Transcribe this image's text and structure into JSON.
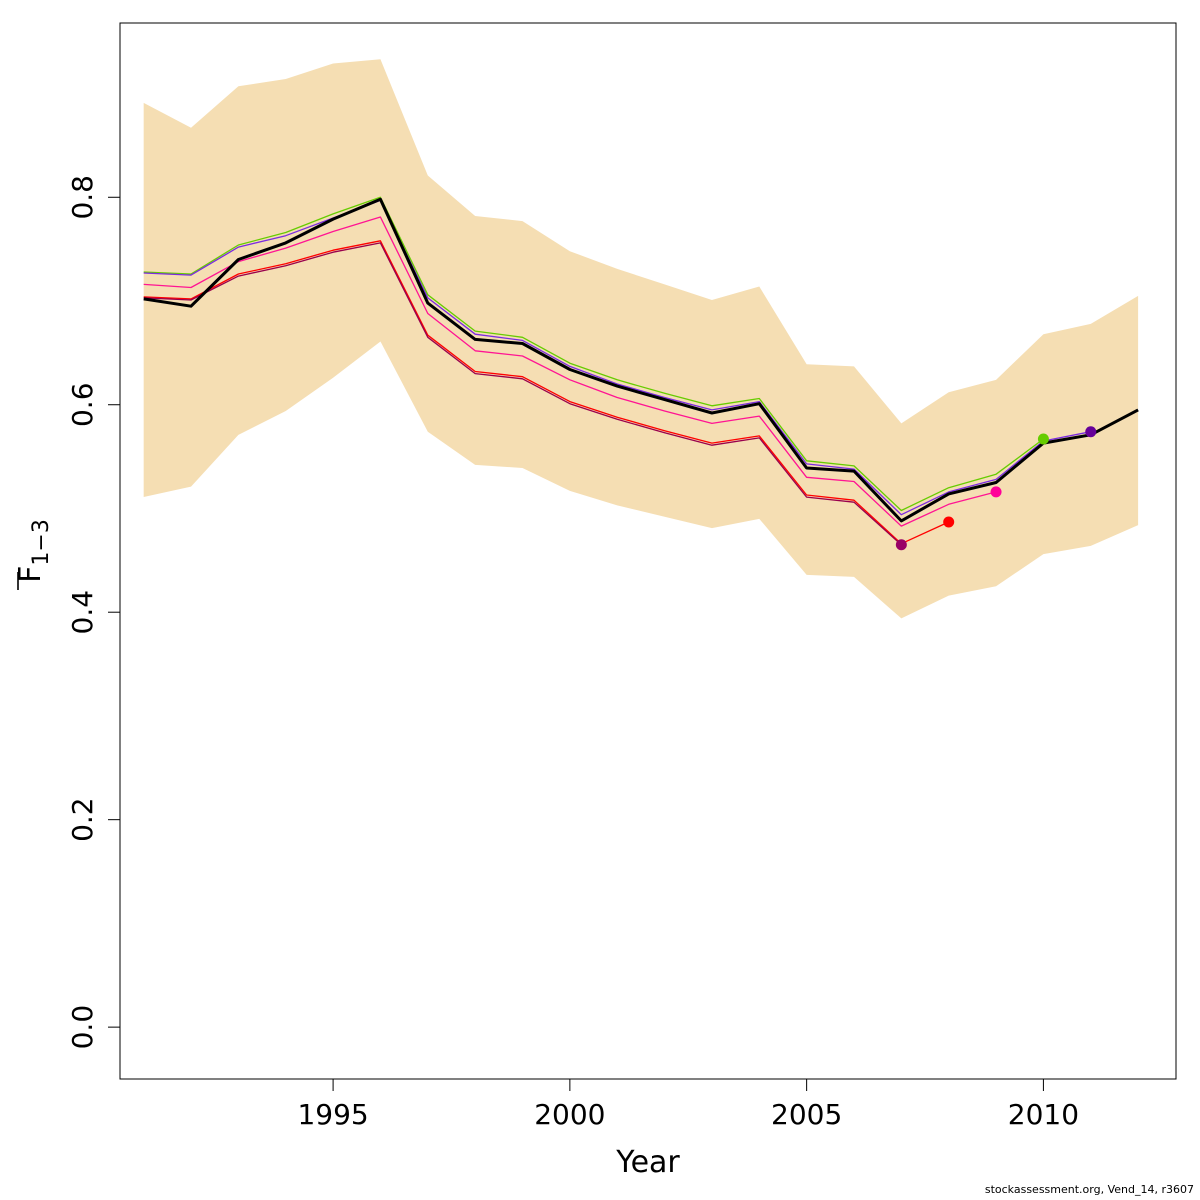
{
  "chart_data": {
    "type": "line",
    "xlabel": "Year",
    "ylabel": "F",
    "ylabel_sub": "1−3",
    "xlim": [
      1990.5,
      2012.8
    ],
    "ylim": [
      -0.05,
      0.968
    ],
    "x_ticks": [
      1995,
      2000,
      2005,
      2010
    ],
    "y_ticks": [
      0.0,
      0.2,
      0.4,
      0.6,
      0.8
    ],
    "y_tick_labels": [
      "0.0",
      "0.2",
      "0.4",
      "0.6",
      "0.8"
    ],
    "grid": false,
    "legend": "none",
    "band": {
      "color": "#f5deb3",
      "x": [
        1991,
        1992,
        1993,
        1994,
        1995,
        1996,
        1997,
        1998,
        1999,
        2000,
        2001,
        2002,
        2003,
        2004,
        2005,
        2006,
        2007,
        2008,
        2009,
        2010,
        2011,
        2012
      ],
      "lower": [
        0.511,
        0.521,
        0.571,
        0.594,
        0.626,
        0.661,
        0.574,
        0.542,
        0.539,
        0.517,
        0.503,
        0.492,
        0.481,
        0.49,
        0.436,
        0.434,
        0.394,
        0.416,
        0.425,
        0.456,
        0.464,
        0.484
      ],
      "upper": [
        0.891,
        0.867,
        0.907,
        0.914,
        0.929,
        0.933,
        0.821,
        0.782,
        0.777,
        0.748,
        0.731,
        0.716,
        0.701,
        0.714,
        0.639,
        0.637,
        0.582,
        0.612,
        0.624,
        0.668,
        0.678,
        0.705
      ]
    },
    "series": [
      {
        "color": "#66cc00",
        "width": 1.3,
        "point_color": "#66cc00",
        "x": [
          1991,
          1992,
          1993,
          1994,
          1995,
          1996,
          1997,
          1998,
          1999,
          2000,
          2001,
          2002,
          2003,
          2004,
          2005,
          2006,
          2007,
          2008,
          2009,
          2010
        ],
        "y": [
          0.728,
          0.726,
          0.754,
          0.766,
          0.784,
          0.8,
          0.706,
          0.671,
          0.665,
          0.64,
          0.624,
          0.611,
          0.599,
          0.606,
          0.546,
          0.541,
          0.498,
          0.52,
          0.533,
          0.567
        ]
      },
      {
        "color": "#7b2be0",
        "width": 1.3,
        "point_color": "#660099",
        "x": [
          1991,
          1992,
          1993,
          1994,
          1995,
          1996,
          1997,
          1998,
          1999,
          2000,
          2001,
          2002,
          2003,
          2004,
          2005,
          2006,
          2007,
          2008,
          2009,
          2010,
          2011
        ],
        "y": [
          0.727,
          0.725,
          0.752,
          0.763,
          0.78,
          0.797,
          0.703,
          0.668,
          0.662,
          0.637,
          0.62,
          0.607,
          0.595,
          0.603,
          0.543,
          0.538,
          0.494,
          0.516,
          0.528,
          0.565,
          0.574
        ]
      },
      {
        "color": "#ff1493",
        "width": 1.3,
        "point_color": "#ff0099",
        "x": [
          1991,
          1992,
          1993,
          1994,
          1995,
          1996,
          1997,
          1998,
          1999,
          2000,
          2001,
          2002,
          2003,
          2004,
          2005,
          2006,
          2007,
          2008,
          2009
        ],
        "y": [
          0.716,
          0.713,
          0.738,
          0.751,
          0.767,
          0.781,
          0.688,
          0.652,
          0.647,
          0.624,
          0.607,
          0.594,
          0.582,
          0.589,
          0.53,
          0.526,
          0.483,
          0.504,
          0.516
        ]
      },
      {
        "color": "#ff0000",
        "width": 1.3,
        "point_color": "#ff0000",
        "x": [
          1991,
          1992,
          1993,
          1994,
          1995,
          1996,
          1997,
          1998,
          1999,
          2000,
          2001,
          2002,
          2003,
          2004,
          2005,
          2006,
          2007,
          2008
        ],
        "y": [
          0.704,
          0.702,
          0.726,
          0.736,
          0.749,
          0.758,
          0.667,
          0.632,
          0.627,
          0.603,
          0.588,
          0.575,
          0.563,
          0.57,
          0.513,
          0.508,
          0.466,
          0.487
        ]
      },
      {
        "color": "#99004c",
        "width": 1.3,
        "point_color": "#990066",
        "x": [
          1991,
          1992,
          1993,
          1994,
          1995,
          1996,
          1997,
          1998,
          1999,
          2000,
          2001,
          2002,
          2003,
          2004,
          2005,
          2006,
          2007
        ],
        "y": [
          0.703,
          0.701,
          0.724,
          0.734,
          0.747,
          0.756,
          0.665,
          0.63,
          0.625,
          0.601,
          0.586,
          0.573,
          0.561,
          0.568,
          0.511,
          0.506,
          0.465
        ]
      },
      {
        "color": "#000000",
        "width": 3,
        "point_color": null,
        "x": [
          1991,
          1992,
          1993,
          1994,
          1995,
          1996,
          1997,
          1998,
          1999,
          2000,
          2001,
          2002,
          2003,
          2004,
          2005,
          2006,
          2007,
          2008,
          2009,
          2010,
          2011,
          2012
        ],
        "y": [
          0.702,
          0.695,
          0.74,
          0.756,
          0.779,
          0.798,
          0.698,
          0.663,
          0.659,
          0.634,
          0.618,
          0.605,
          0.592,
          0.601,
          0.539,
          0.536,
          0.488,
          0.514,
          0.525,
          0.563,
          0.571,
          0.595
        ]
      }
    ]
  },
  "footer": "stockassessment.org, Vend_14, r3607"
}
